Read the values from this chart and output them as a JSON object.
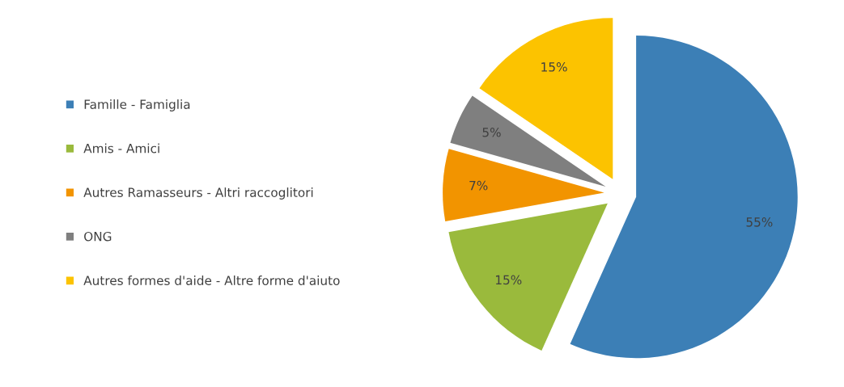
{
  "chart_data": {
    "type": "pie",
    "categories": [
      "Famille - Famiglia",
      "Amis - Amici",
      "Autres Ramasseurs - Altri raccoglitori",
      "ONG",
      "Autres formes d'aide - Altre forme d'aiuto"
    ],
    "values": [
      55,
      15,
      7,
      5,
      15
    ],
    "colors": [
      "#3c7fb6",
      "#9aba3c",
      "#f29400",
      "#7f7f7f",
      "#fcc300"
    ],
    "value_labels": [
      "55%",
      "15%",
      "7%",
      "5%",
      "15%"
    ],
    "legend": "left"
  }
}
